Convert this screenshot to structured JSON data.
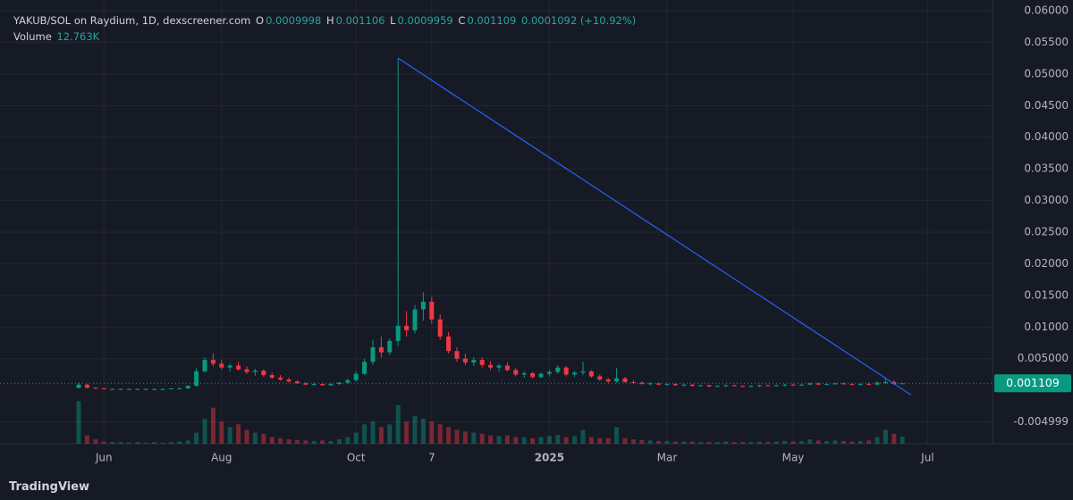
{
  "chart_data": {
    "type": "candlestick",
    "legend": {
      "symbol": "YAKUB/SOL on Raydium, 1D, dexscreener.com",
      "open_label": "O",
      "open": "0.0009998",
      "high_label": "H",
      "high": "0.001106",
      "low_label": "L",
      "low": "0.0009959",
      "close_label": "C",
      "close": "0.001109",
      "change": "0.0001092 (+10.92%)",
      "volume_title": "Volume",
      "volume_value": "12.763K"
    },
    "footer": "TradingView",
    "categories": [
      null,
      null,
      null,
      "Jun",
      null,
      null,
      null,
      null,
      null,
      null,
      null,
      null,
      null,
      null,
      null,
      null,
      null,
      "Aug",
      null,
      null,
      null,
      null,
      null,
      null,
      null,
      null,
      null,
      null,
      null,
      null,
      null,
      null,
      null,
      "Oct",
      null,
      null,
      null,
      null,
      null,
      null,
      null,
      null,
      "7",
      null,
      null,
      null,
      null,
      null,
      null,
      null,
      null,
      null,
      null,
      null,
      null,
      null,
      "2025",
      null,
      null,
      null,
      null,
      null,
      null,
      null,
      null,
      null,
      null,
      null,
      null,
      null,
      "Mar",
      null,
      null,
      null,
      null,
      null,
      null,
      null,
      null,
      null,
      null,
      null,
      null,
      null,
      null,
      "May",
      null,
      null,
      null,
      null,
      null,
      null,
      null,
      null,
      null,
      null,
      null,
      null,
      null,
      null,
      null,
      "Jul",
      null,
      null,
      null,
      null,
      null,
      null,
      null
    ],
    "open": [
      0.0004,
      0.0009,
      0.0004,
      0.0003,
      0.0002,
      0.0002,
      0.0002,
      0.0002,
      0.0002,
      0.0002,
      0.0002,
      0.0002,
      0.0003,
      0.0003,
      0.0007,
      0.003,
      0.0048,
      0.0042,
      0.0036,
      0.0039,
      0.0033,
      0.0029,
      0.0031,
      0.0024,
      0.002,
      0.0017,
      0.0014,
      0.0011,
      0.0009,
      0.001,
      0.0008,
      0.001,
      0.0012,
      0.0016,
      0.0026,
      0.0045,
      0.0068,
      0.006,
      0.0078,
      0.0102,
      0.0095,
      0.0128,
      0.014,
      0.0112,
      0.0085,
      0.0062,
      0.005,
      0.0044,
      0.0048,
      0.004,
      0.0036,
      0.0039,
      0.0032,
      0.0025,
      0.0027,
      0.0021,
      0.0026,
      0.0029,
      0.0036,
      0.0025,
      0.0028,
      0.003,
      0.0022,
      0.0017,
      0.0014,
      0.0019,
      0.0013,
      0.0012,
      0.001,
      0.0011,
      0.0009,
      0.001,
      0.0008,
      0.0009,
      0.0007,
      0.0008,
      0.0006,
      0.0007,
      0.0008,
      0.0007,
      0.0006,
      0.0007,
      0.0008,
      0.0007,
      0.0008,
      0.0009,
      0.0008,
      0.0009,
      0.0011,
      0.0009,
      0.001,
      0.0011,
      0.001,
      0.0009,
      0.001,
      0.0009,
      0.0012,
      0.0013,
      0.0009998,
      null,
      null,
      null,
      null,
      null,
      null,
      null,
      null,
      null,
      null
    ],
    "high": [
      0.0012,
      0.001,
      0.0005,
      0.0004,
      0.0003,
      0.0003,
      0.0003,
      0.0003,
      0.0003,
      0.0003,
      0.0003,
      0.0003,
      0.0004,
      0.0008,
      0.0035,
      0.0052,
      0.0058,
      0.0048,
      0.0042,
      0.0045,
      0.0038,
      0.0034,
      0.0033,
      0.0028,
      0.0024,
      0.002,
      0.0016,
      0.0013,
      0.0012,
      0.0012,
      0.0011,
      0.0013,
      0.0018,
      0.003,
      0.005,
      0.008,
      0.0085,
      0.0082,
      0.0525,
      0.0125,
      0.0135,
      0.0155,
      0.0148,
      0.012,
      0.0092,
      0.0068,
      0.0058,
      0.0052,
      0.0052,
      0.0046,
      0.0042,
      0.0044,
      0.0035,
      0.003,
      0.0029,
      0.0028,
      0.0032,
      0.004,
      0.0038,
      0.003,
      0.0045,
      0.0032,
      0.0025,
      0.002,
      0.0035,
      0.0021,
      0.0016,
      0.0014,
      0.0013,
      0.0012,
      0.0011,
      0.0011,
      0.001,
      0.001,
      0.0009,
      0.0009,
      0.0008,
      0.0009,
      0.0009,
      0.0008,
      0.0008,
      0.0009,
      0.0009,
      0.0009,
      0.001,
      0.001,
      0.001,
      0.0012,
      0.0012,
      0.0011,
      0.0012,
      0.0012,
      0.0011,
      0.0011,
      0.0012,
      0.0014,
      0.002,
      0.0016,
      0.001106,
      null,
      null,
      null,
      null,
      null,
      null,
      null,
      null,
      null,
      null
    ],
    "low": [
      0.0003,
      0.0003,
      0.0002,
      0.0002,
      0.0002,
      0.0001,
      0.0001,
      0.0001,
      0.0001,
      0.0001,
      0.0001,
      0.0002,
      0.0002,
      0.0002,
      0.0006,
      0.0028,
      0.0038,
      0.0033,
      0.003,
      0.0031,
      0.0026,
      0.0023,
      0.0021,
      0.0018,
      0.0015,
      0.0012,
      0.001,
      0.0008,
      0.0007,
      0.0007,
      0.0007,
      0.0008,
      0.001,
      0.0014,
      0.0024,
      0.004,
      0.0052,
      0.0055,
      0.007,
      0.0085,
      0.009,
      0.011,
      0.0105,
      0.008,
      0.0058,
      0.0045,
      0.004,
      0.0038,
      0.0036,
      0.0032,
      0.003,
      0.003,
      0.0022,
      0.002,
      0.0019,
      0.0019,
      0.0022,
      0.0026,
      0.0022,
      0.0021,
      0.0024,
      0.002,
      0.0015,
      0.0012,
      0.0012,
      0.0012,
      0.001,
      0.0009,
      0.0008,
      0.0008,
      0.0007,
      0.0007,
      0.0006,
      0.0006,
      0.0006,
      0.0005,
      0.0005,
      0.0005,
      0.0006,
      0.0005,
      0.0005,
      0.0005,
      0.0006,
      0.0006,
      0.0006,
      0.0007,
      0.0007,
      0.0008,
      0.0008,
      0.0008,
      0.0009,
      0.0009,
      0.0008,
      0.0008,
      0.0008,
      0.0008,
      0.001,
      0.0009,
      0.0009959,
      null,
      null,
      null,
      null,
      null,
      null,
      null,
      null,
      null,
      null
    ],
    "close": [
      0.0009,
      0.0004,
      0.0003,
      0.0002,
      0.0002,
      0.0002,
      0.0002,
      0.0002,
      0.0002,
      0.0002,
      0.0002,
      0.0003,
      0.0003,
      0.0007,
      0.003,
      0.0048,
      0.0042,
      0.0036,
      0.0039,
      0.0033,
      0.0029,
      0.0031,
      0.0024,
      0.002,
      0.0017,
      0.0014,
      0.0011,
      0.0009,
      0.001,
      0.0008,
      0.001,
      0.0012,
      0.0016,
      0.0026,
      0.0045,
      0.0068,
      0.006,
      0.0078,
      0.0102,
      0.0095,
      0.0128,
      0.014,
      0.0112,
      0.0085,
      0.0062,
      0.005,
      0.0044,
      0.0048,
      0.004,
      0.0036,
      0.0039,
      0.0032,
      0.0025,
      0.0027,
      0.0021,
      0.0026,
      0.0029,
      0.0036,
      0.0025,
      0.0028,
      0.003,
      0.0022,
      0.0017,
      0.0014,
      0.0019,
      0.0013,
      0.0012,
      0.001,
      0.0011,
      0.0009,
      0.001,
      0.0008,
      0.0009,
      0.0007,
      0.0008,
      0.0006,
      0.0007,
      0.0008,
      0.0007,
      0.0006,
      0.0007,
      0.0008,
      0.0007,
      0.0008,
      0.0009,
      0.0008,
      0.0009,
      0.0011,
      0.0009,
      0.001,
      0.0011,
      0.001,
      0.0009,
      0.001,
      0.0009,
      0.0012,
      0.0013,
      0.001,
      0.001109,
      null,
      null,
      null,
      null,
      null,
      null,
      null,
      null,
      null,
      null
    ],
    "volume": [
      77,
      15,
      8,
      4,
      3,
      3,
      2,
      3,
      2,
      3,
      2,
      3,
      4,
      6,
      20,
      45,
      65,
      40,
      30,
      35,
      25,
      20,
      18,
      12,
      10,
      8,
      7,
      6,
      5,
      6,
      5,
      8,
      12,
      20,
      35,
      40,
      30,
      35,
      70,
      40,
      50,
      45,
      40,
      35,
      30,
      25,
      22,
      20,
      18,
      15,
      14,
      15,
      12,
      12,
      10,
      12,
      14,
      16,
      12,
      14,
      25,
      12,
      10,
      10,
      30,
      10,
      8,
      7,
      6,
      5,
      5,
      4,
      4,
      4,
      3,
      3,
      3,
      4,
      3,
      3,
      3,
      4,
      3,
      4,
      5,
      4,
      5,
      8,
      6,
      5,
      6,
      5,
      4,
      5,
      6,
      12,
      25,
      18,
      12.763,
      null,
      null,
      null,
      null,
      null,
      null,
      null,
      null,
      null,
      null
    ],
    "up_color": "#089981",
    "down_color": "#f23645",
    "trendline": {
      "color": "#2962ff",
      "start": 0.0525,
      "end": -0.0007
    },
    "ylim": [
      -0.00845,
      0.0617
    ],
    "yticks": [
      {
        "value": 0.06,
        "label": "0.06000"
      },
      {
        "value": 0.055,
        "label": "0.05500"
      },
      {
        "value": 0.05,
        "label": "0.05000"
      },
      {
        "value": 0.045,
        "label": "0.04500"
      },
      {
        "value": 0.04,
        "label": "0.04000"
      },
      {
        "value": 0.035,
        "label": "0.03500"
      },
      {
        "value": 0.03,
        "label": "0.03000"
      },
      {
        "value": 0.025,
        "label": "0.02500"
      },
      {
        "value": 0.02,
        "label": "0.02000"
      },
      {
        "value": 0.015,
        "label": "0.01500"
      },
      {
        "value": 0.01,
        "label": "0.01000"
      },
      {
        "value": 0.005,
        "label": "0.005000"
      },
      {
        "value": -0.004999,
        "label": "-0.004999"
      }
    ],
    "y2lim": [
      0,
      800
    ],
    "grid": true
  }
}
